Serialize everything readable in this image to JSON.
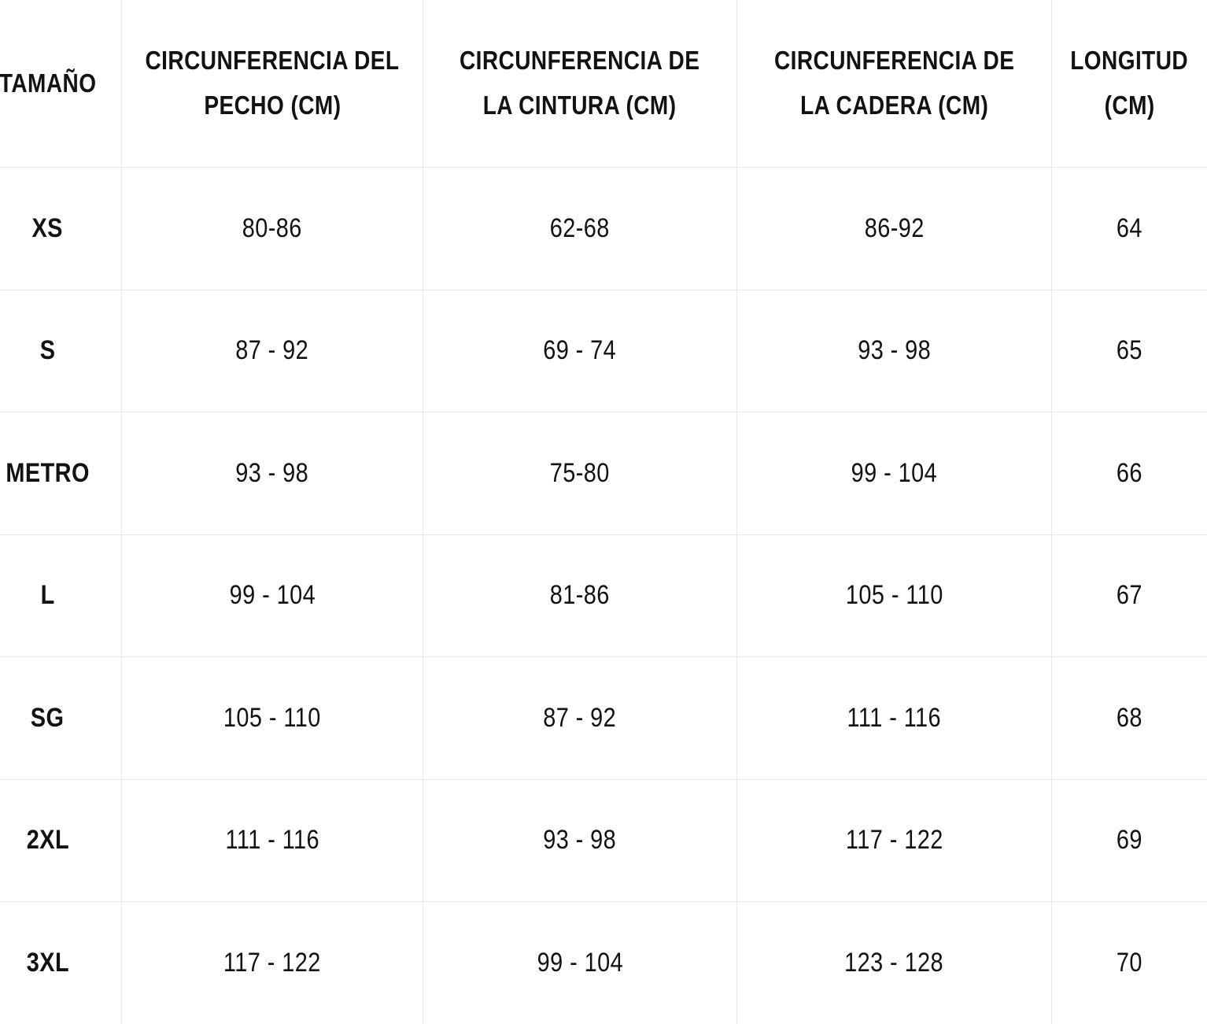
{
  "colors": {
    "background": "#ffffff",
    "grid_line": "#e8e8e8",
    "text": "#121212"
  },
  "header": {
    "size": {
      "label": "TAMAÑO",
      "lines": [
        "TAMAÑO"
      ]
    },
    "chest": {
      "label": "CIRCUNFERENCIA DEL PECHO (CM)",
      "lines": [
        "CIRCUNFERENCIA DEL",
        "PECHO (CM)"
      ]
    },
    "waist": {
      "label": "CIRCUNFERENCIA DE LA CINTURA (CM)",
      "lines": [
        "CIRCUNFERENCIA DE",
        "LA CINTURA (CM)"
      ]
    },
    "hip": {
      "label": "CIRCUNFERENCIA DE LA CADERA (CM)",
      "lines": [
        "CIRCUNFERENCIA DE",
        "LA CADERA (CM)"
      ]
    },
    "length": {
      "label": "LONGITUD (CM)",
      "lines": [
        "LONGITUD",
        "(CM)"
      ]
    }
  },
  "rows": [
    {
      "size": "XS",
      "chest": "80-86",
      "waist": "62-68",
      "hip": "86-92",
      "length": "64"
    },
    {
      "size": "S",
      "chest": "87 - 92",
      "waist": "69 - 74",
      "hip": "93 - 98",
      "length": "65"
    },
    {
      "size": "METRO",
      "chest": "93 - 98",
      "waist": "75-80",
      "hip": "99 - 104",
      "length": "66"
    },
    {
      "size": "L",
      "chest": "99 - 104",
      "waist": "81-86",
      "hip": "105 - 110",
      "length": "67"
    },
    {
      "size": "SG",
      "chest": "105 - 110",
      "waist": "87 - 92",
      "hip": "111 - 116",
      "length": "68"
    },
    {
      "size": "2XL",
      "chest": "111 - 116",
      "waist": "93 - 98",
      "hip": "117 - 122",
      "length": "69"
    },
    {
      "size": "3XL",
      "chest": "117 - 122",
      "waist": "99 - 104",
      "hip": "123 - 128",
      "length": "70"
    }
  ],
  "chart_data": {
    "type": "table",
    "title": "",
    "columns": [
      "TAMAÑO",
      "CIRCUNFERENCIA DEL PECHO (CM)",
      "CIRCUNFERENCIA DE LA CINTURA (CM)",
      "CIRCUNFERENCIA DE LA CADERA (CM)",
      "LONGITUD (CM)"
    ],
    "rows": [
      [
        "XS",
        "80-86",
        "62-68",
        "86-92",
        "64"
      ],
      [
        "S",
        "87 - 92",
        "69 - 74",
        "93 - 98",
        "65"
      ],
      [
        "METRO",
        "93 - 98",
        "75-80",
        "99 - 104",
        "66"
      ],
      [
        "L",
        "99 - 104",
        "81-86",
        "105 - 110",
        "67"
      ],
      [
        "SG",
        "105 - 110",
        "87 - 92",
        "111 - 116",
        "68"
      ],
      [
        "2XL",
        "111 - 116",
        "93 - 98",
        "117 - 122",
        "69"
      ],
      [
        "3XL",
        "117 - 122",
        "99 - 104",
        "123 - 128",
        "70"
      ]
    ]
  }
}
